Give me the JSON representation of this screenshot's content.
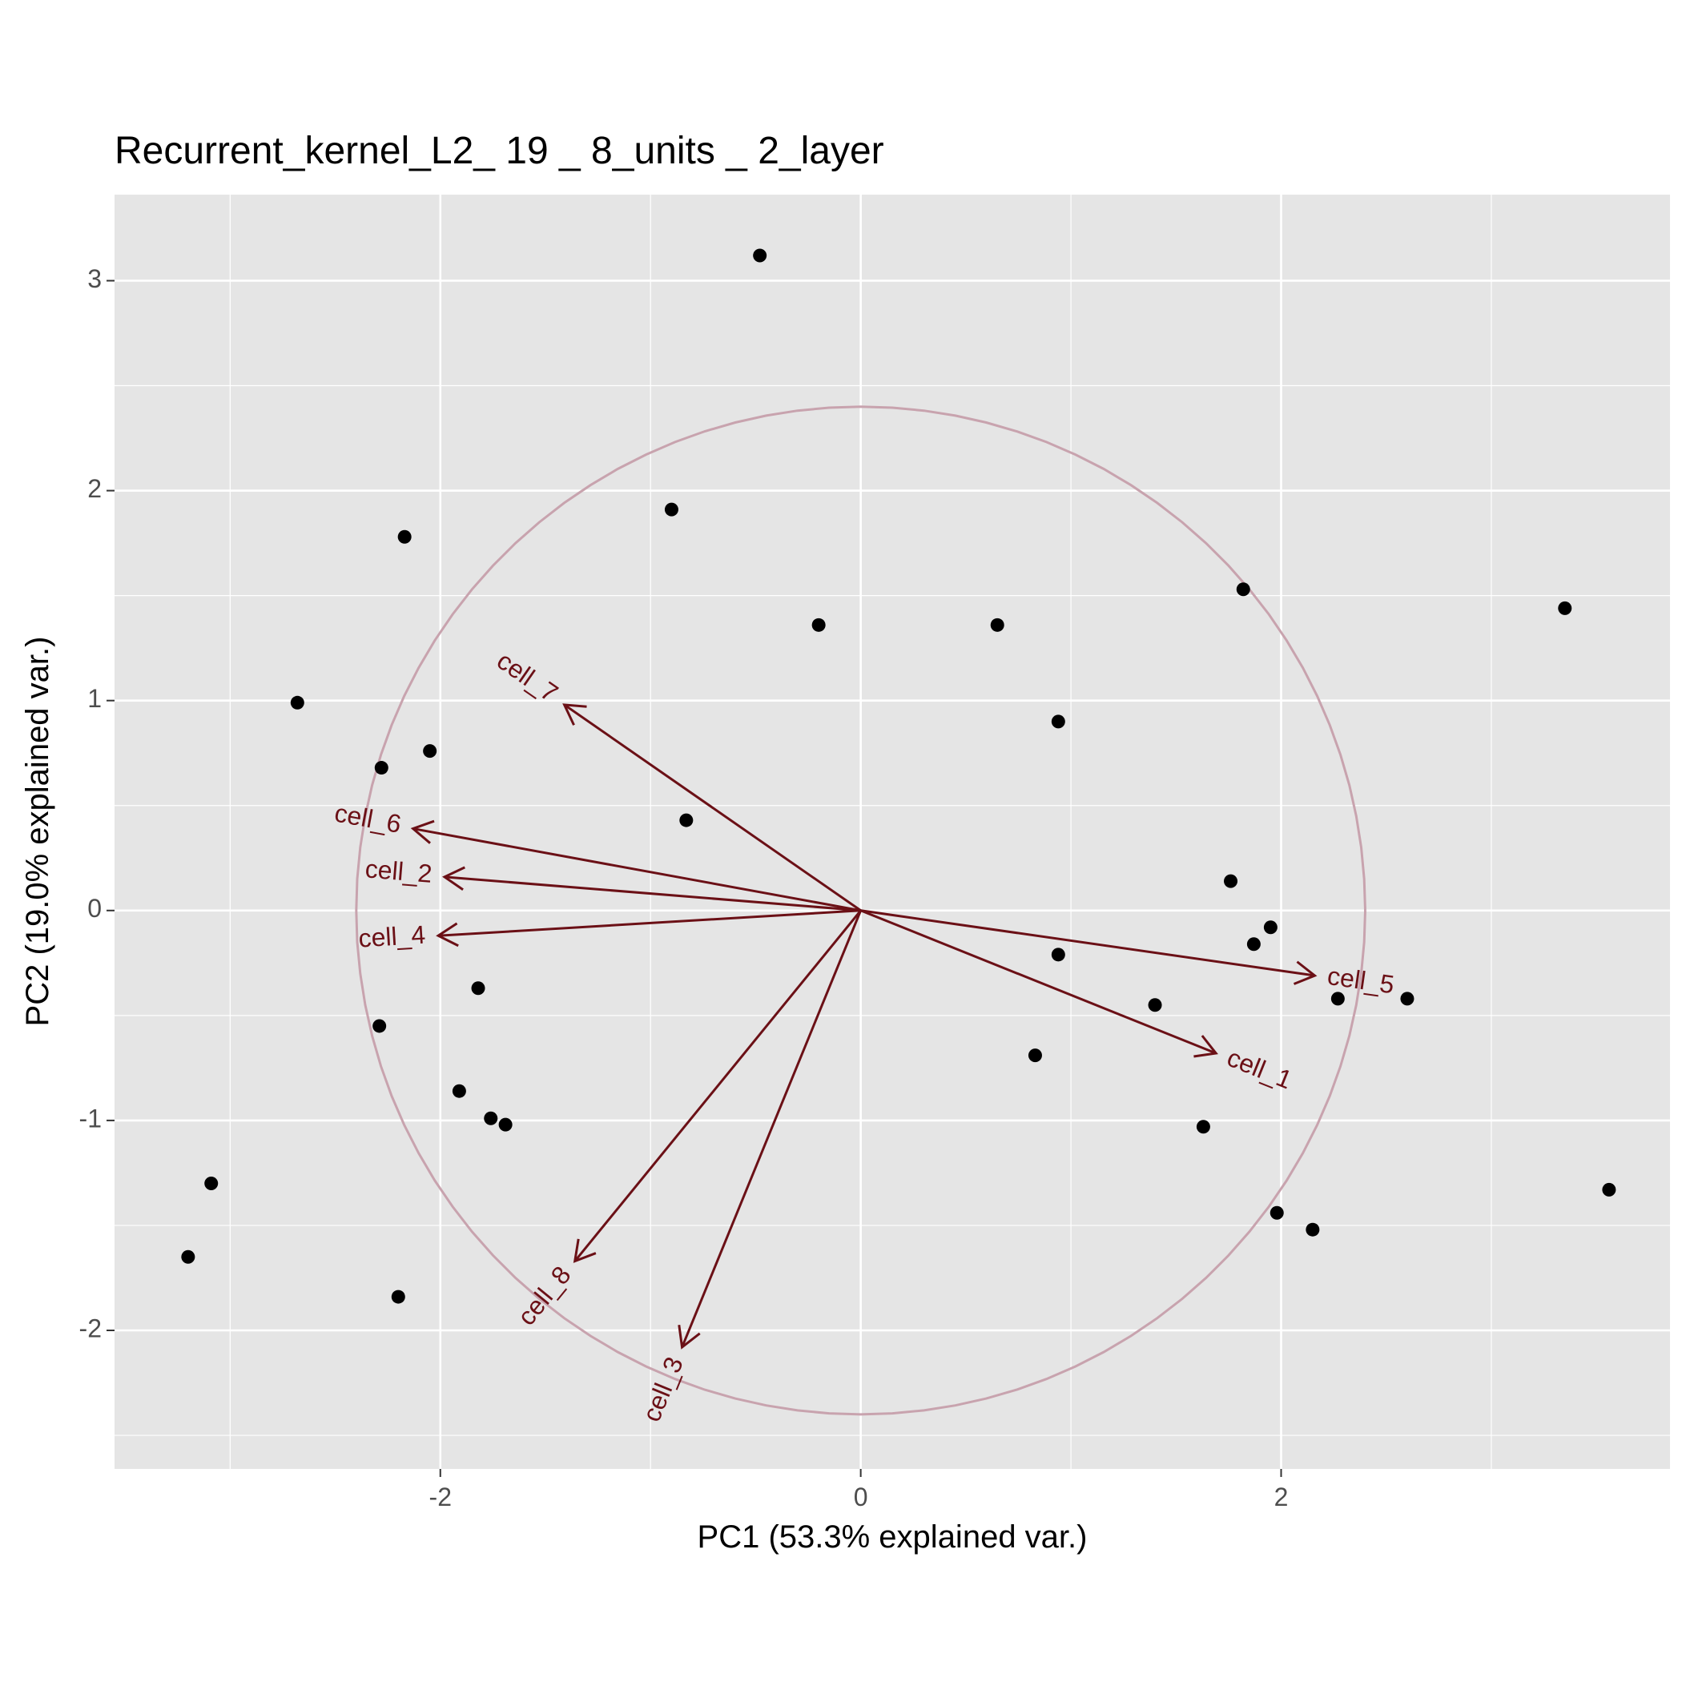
{
  "chart_data": {
    "type": "scatter",
    "title": "Recurrent_kernel_L2_ 19 _ 8_units _ 2_layer",
    "xlabel": "PC1 (53.3% explained var.)",
    "ylabel": "PC2 (19.0% explained var.)",
    "xlim": [
      -3.55,
      3.85
    ],
    "ylim": [
      -2.66,
      3.41
    ],
    "x_ticks": [
      -2,
      0,
      2
    ],
    "y_ticks": [
      -2,
      -1,
      0,
      1,
      2,
      3
    ],
    "x_tick_labels": [
      "-2",
      "0",
      "2"
    ],
    "y_tick_labels": [
      "-2",
      "-1",
      "0",
      "1",
      "2",
      "3"
    ],
    "grid": true,
    "points": [
      {
        "x": -0.48,
        "y": 3.12
      },
      {
        "x": -0.9,
        "y": 1.91
      },
      {
        "x": -2.17,
        "y": 1.78
      },
      {
        "x": -0.2,
        "y": 1.36
      },
      {
        "x": 0.65,
        "y": 1.36
      },
      {
        "x": 1.82,
        "y": 1.53
      },
      {
        "x": 3.35,
        "y": 1.44
      },
      {
        "x": -2.68,
        "y": 0.99
      },
      {
        "x": 0.94,
        "y": 0.9
      },
      {
        "x": -2.05,
        "y": 0.76
      },
      {
        "x": -2.28,
        "y": 0.68
      },
      {
        "x": -0.83,
        "y": 0.43
      },
      {
        "x": 1.76,
        "y": 0.14
      },
      {
        "x": 1.95,
        "y": -0.08
      },
      {
        "x": 1.87,
        "y": -0.16
      },
      {
        "x": 0.94,
        "y": -0.21
      },
      {
        "x": -1.82,
        "y": -0.37
      },
      {
        "x": 2.27,
        "y": -0.42
      },
      {
        "x": 2.6,
        "y": -0.42
      },
      {
        "x": 1.4,
        "y": -0.45
      },
      {
        "x": -2.29,
        "y": -0.55
      },
      {
        "x": 0.83,
        "y": -0.69
      },
      {
        "x": -1.91,
        "y": -0.86
      },
      {
        "x": -1.76,
        "y": -0.99
      },
      {
        "x": -1.69,
        "y": -1.02
      },
      {
        "x": 1.63,
        "y": -1.03
      },
      {
        "x": -3.09,
        "y": -1.3
      },
      {
        "x": 3.56,
        "y": -1.33
      },
      {
        "x": 1.98,
        "y": -1.44
      },
      {
        "x": 2.15,
        "y": -1.52
      },
      {
        "x": -3.2,
        "y": -1.65
      },
      {
        "x": -2.2,
        "y": -1.84
      }
    ],
    "arrows": [
      {
        "label": "cell_1",
        "x": 1.69,
        "y": -0.68
      },
      {
        "label": "cell_2",
        "x": -1.98,
        "y": 0.16
      },
      {
        "label": "cell_3",
        "x": -0.85,
        "y": -2.08
      },
      {
        "label": "cell_4",
        "x": -2.01,
        "y": -0.12
      },
      {
        "label": "cell_5",
        "x": 2.16,
        "y": -0.31
      },
      {
        "label": "cell_6",
        "x": -2.13,
        "y": 0.39
      },
      {
        "label": "cell_7",
        "x": -1.41,
        "y": 0.98
      },
      {
        "label": "cell_8",
        "x": -1.36,
        "y": -1.67
      }
    ],
    "circle_radius": 2.4,
    "colors": {
      "panel": "#e5e5e5",
      "grid_major": "#ffffff",
      "point": "#000000",
      "arrow": "#6b1016",
      "circle": "#c8a3ae"
    }
  }
}
